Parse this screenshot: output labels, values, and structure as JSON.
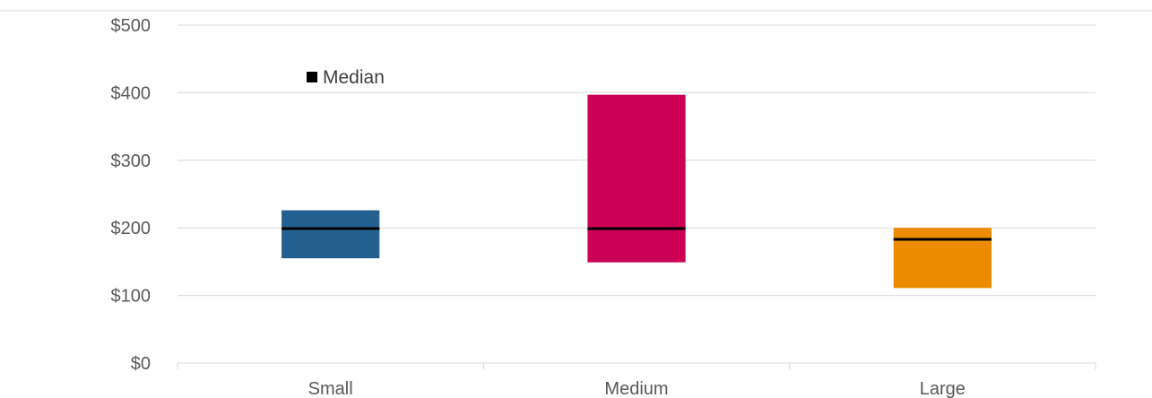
{
  "chart_data": {
    "type": "bar",
    "title": "",
    "xlabel": "",
    "ylabel": "",
    "ylim": [
      0,
      500
    ],
    "y_ticks": [
      "$0",
      "$100",
      "$200",
      "$300",
      "$400",
      "$500"
    ],
    "y_tick_values": [
      0,
      100,
      200,
      300,
      400,
      500
    ],
    "grid": true,
    "legend": {
      "entries": [
        "Median"
      ],
      "placement": "top-left",
      "marker_color": "#000000"
    },
    "categories": [
      "Small",
      "Medium",
      "Large"
    ],
    "series": [
      {
        "low": [
          155,
          149,
          111
        ],
        "high": [
          226,
          397,
          200
        ],
        "colors": [
          "#24608F",
          "#CC0055",
          "#ED8B00"
        ]
      },
      {
        "name": "Median",
        "values": [
          199,
          199,
          183
        ],
        "color": "#000000"
      }
    ]
  }
}
